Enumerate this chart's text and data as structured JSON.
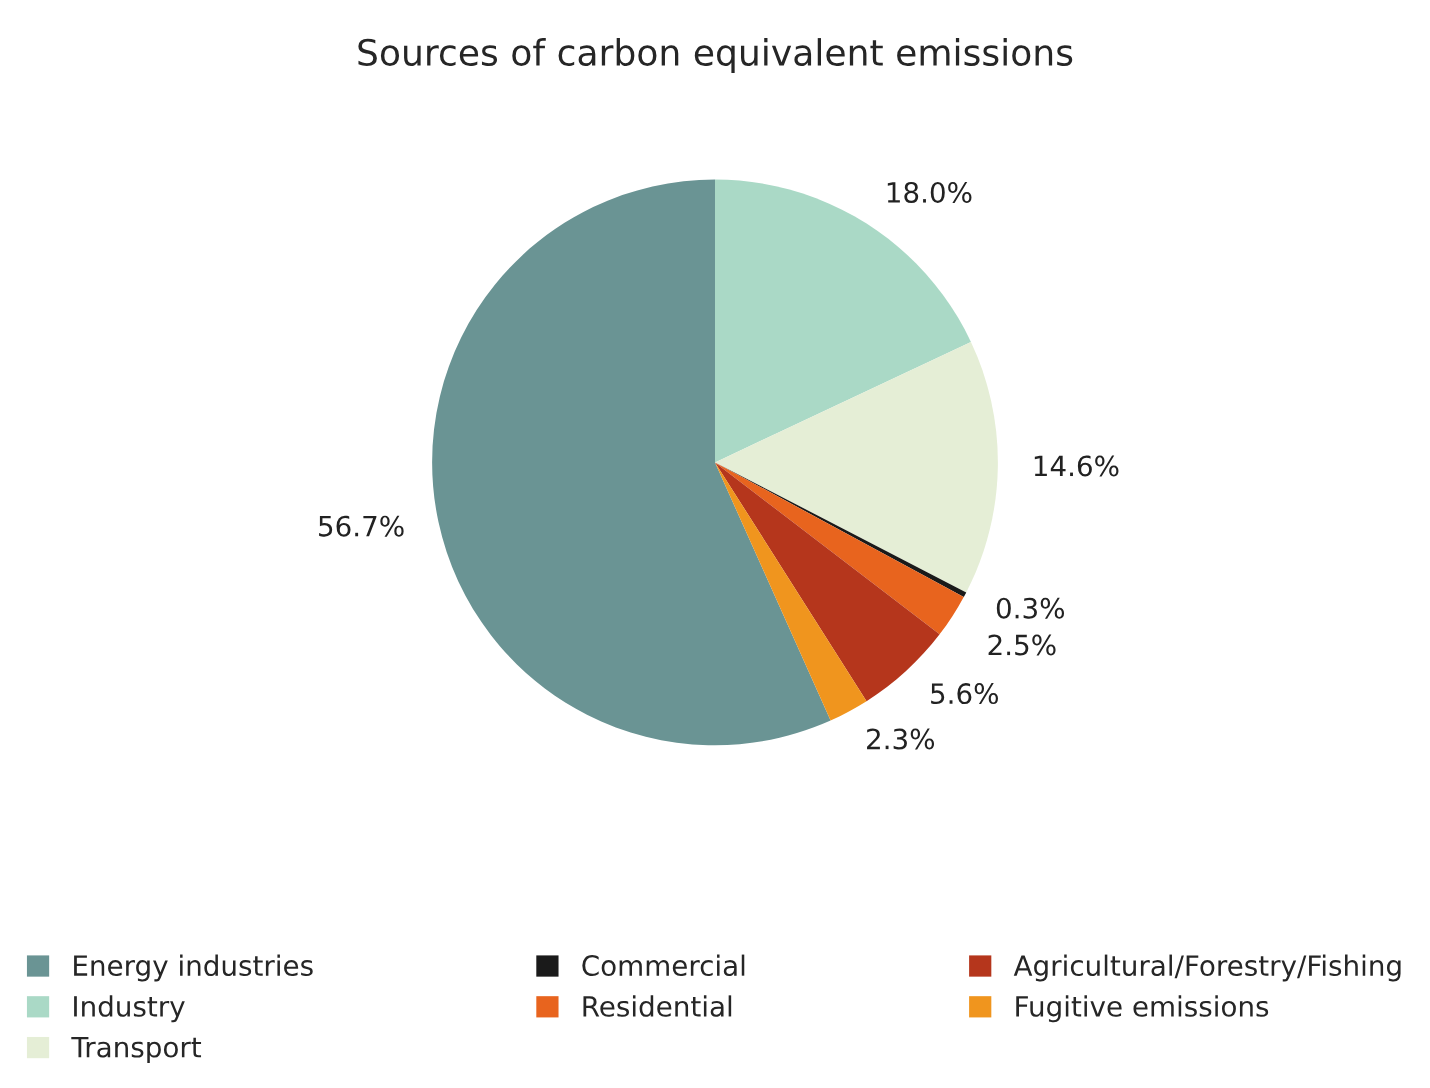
{
  "chart_data": {
    "type": "pie",
    "title": "Sources of carbon equivalent emissions",
    "categories": [
      "Energy industries",
      "Industry",
      "Transport",
      "Commercial",
      "Residential",
      "Agricultural/Forestry/Fishing",
      "Fugitive emissions"
    ],
    "values": [
      56.7,
      18.0,
      14.6,
      0.3,
      2.5,
      5.6,
      2.3
    ],
    "value_labels": [
      "56.7%",
      "18.0%",
      "14.6%",
      "0.3%",
      "2.5%",
      "5.6%",
      "2.3%"
    ],
    "colors": [
      "#6a9494",
      "#aad9c6",
      "#e5eed6",
      "#1a1a1a",
      "#e8641e",
      "#b5361c",
      "#f0951e"
    ],
    "legend": "bottom"
  }
}
